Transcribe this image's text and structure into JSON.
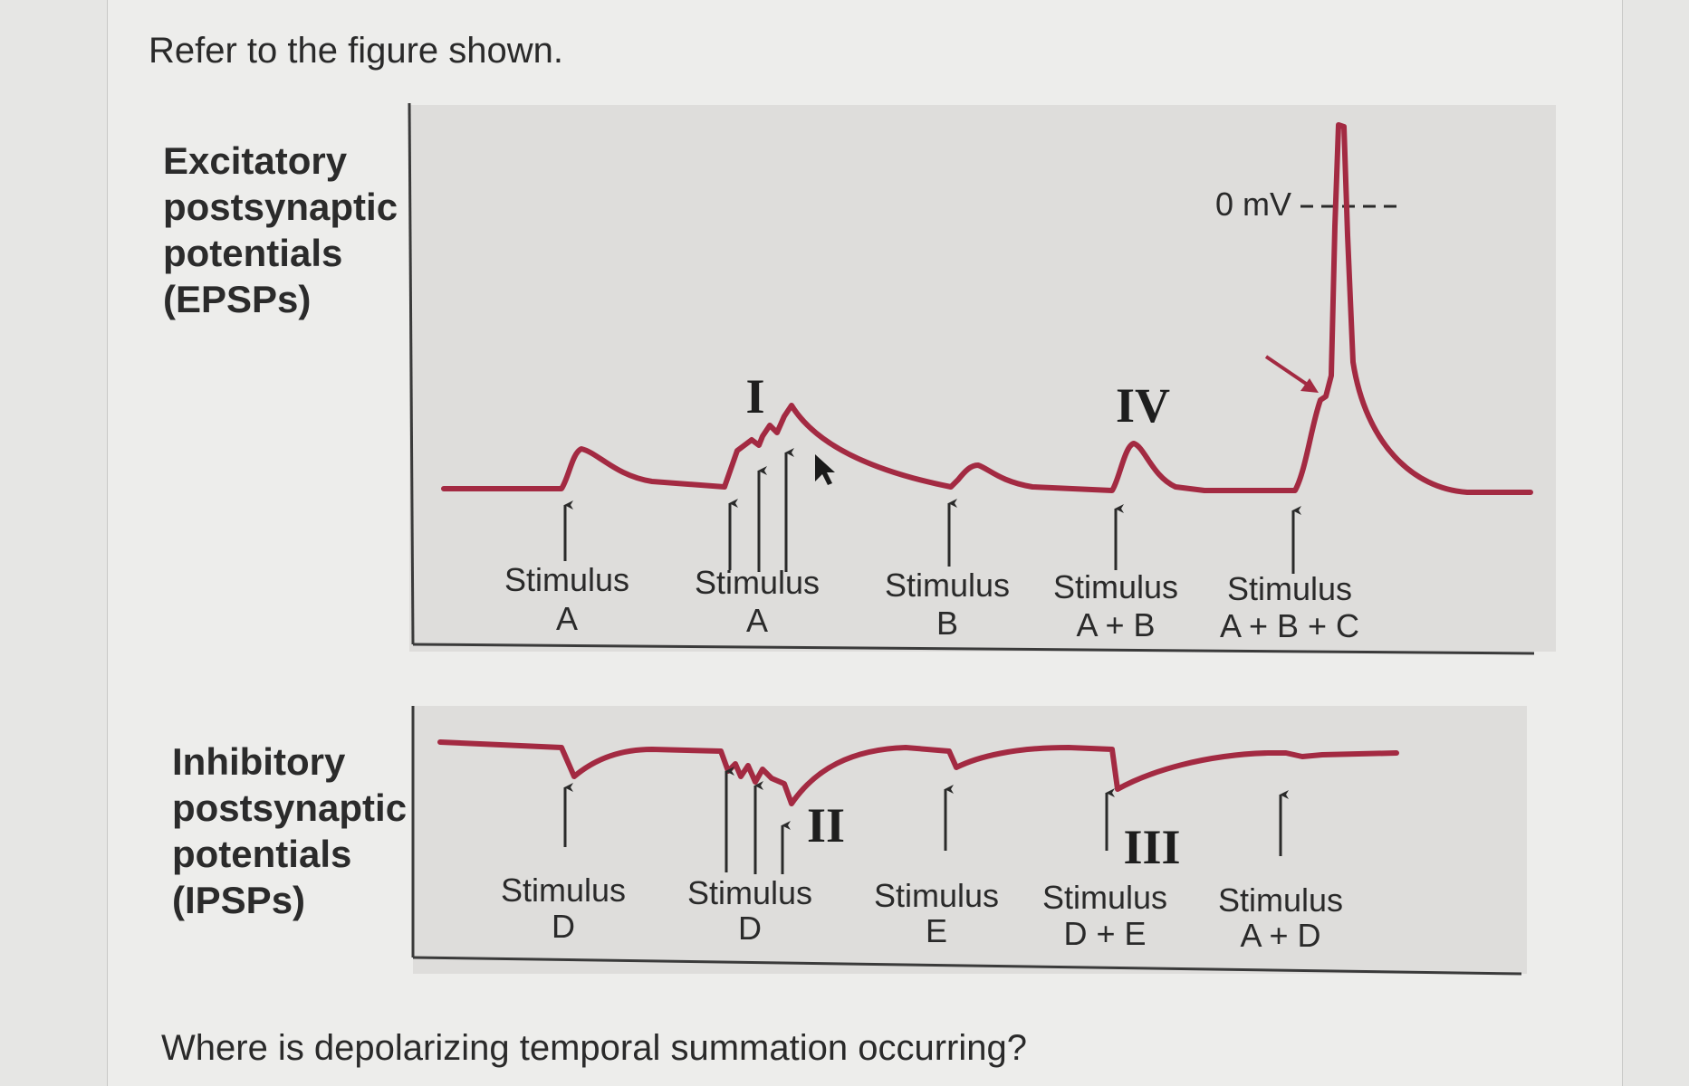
{
  "prompt": "Refer to the figure shown.",
  "question": "Where is depolarizing temporal summation occurring?",
  "epsp_panel": {
    "title_lines": [
      "Excitatory",
      "postsynaptic",
      "potentials",
      "(EPSPs)"
    ],
    "zero_label": "0 mV",
    "stimuli": [
      {
        "line1": "Stimulus",
        "line2": "A"
      },
      {
        "line1": "Stimulus",
        "line2": "A"
      },
      {
        "line1": "Stimulus",
        "line2": "B"
      },
      {
        "line1": "Stimulus",
        "line2": "A + B"
      },
      {
        "line1": "Stimulus",
        "line2": "A + B + C"
      }
    ],
    "markers": [
      "I",
      "IV"
    ]
  },
  "ipsp_panel": {
    "title_lines": [
      "Inhibitory",
      "postsynaptic",
      "potentials",
      "(IPSPs)"
    ],
    "stimuli": [
      {
        "line1": "Stimulus",
        "line2": "D"
      },
      {
        "line1": "Stimulus",
        "line2": "D"
      },
      {
        "line1": "Stimulus",
        "line2": "E"
      },
      {
        "line1": "Stimulus",
        "line2": "D + E"
      },
      {
        "line1": "Stimulus",
        "line2": "A + D"
      }
    ],
    "markers": [
      "II",
      "III"
    ]
  },
  "colors": {
    "trace": "#a32a42",
    "panel_fill": "#dedddb",
    "axis": "#3a3a3a",
    "text": "#2a2a2a"
  }
}
